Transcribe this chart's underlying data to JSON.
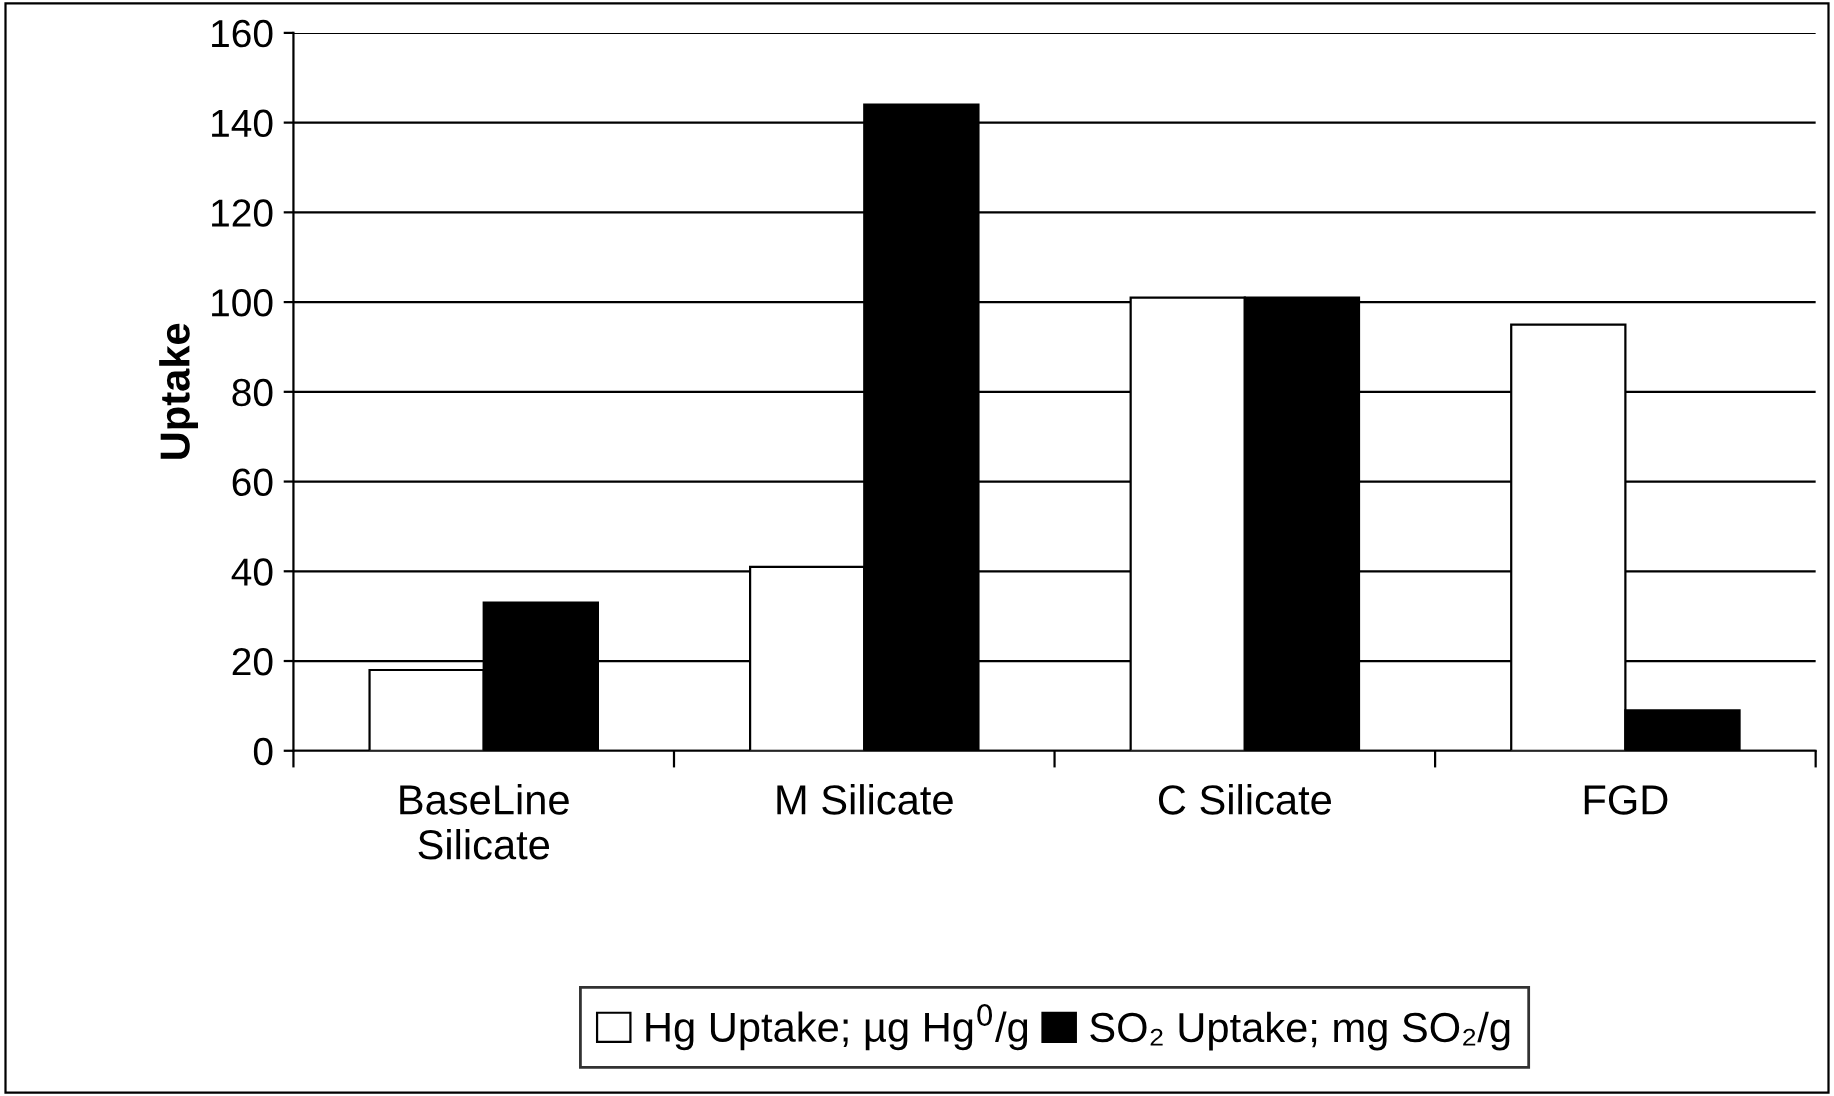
{
  "chart_data": {
    "type": "bar",
    "ylabel": "Uptake",
    "categories": [
      "BaseLine\nSilicate",
      "M Silicate",
      "C Silicate",
      "FGD"
    ],
    "series": [
      {
        "name": "Hg Uptake; µg Hg$^{0}$/g",
        "color": "#ffffff",
        "values": [
          18,
          41,
          101,
          95
        ]
      },
      {
        "name": "SO₂ Uptake; mg SO₂/g",
        "color": "#000000",
        "values": [
          33,
          144,
          101,
          9
        ]
      }
    ],
    "ylim": [
      0,
      160
    ],
    "yticks": [
      0,
      20,
      40,
      60,
      80,
      100,
      120,
      140,
      160
    ],
    "grid": "y",
    "legend": "bottom"
  }
}
